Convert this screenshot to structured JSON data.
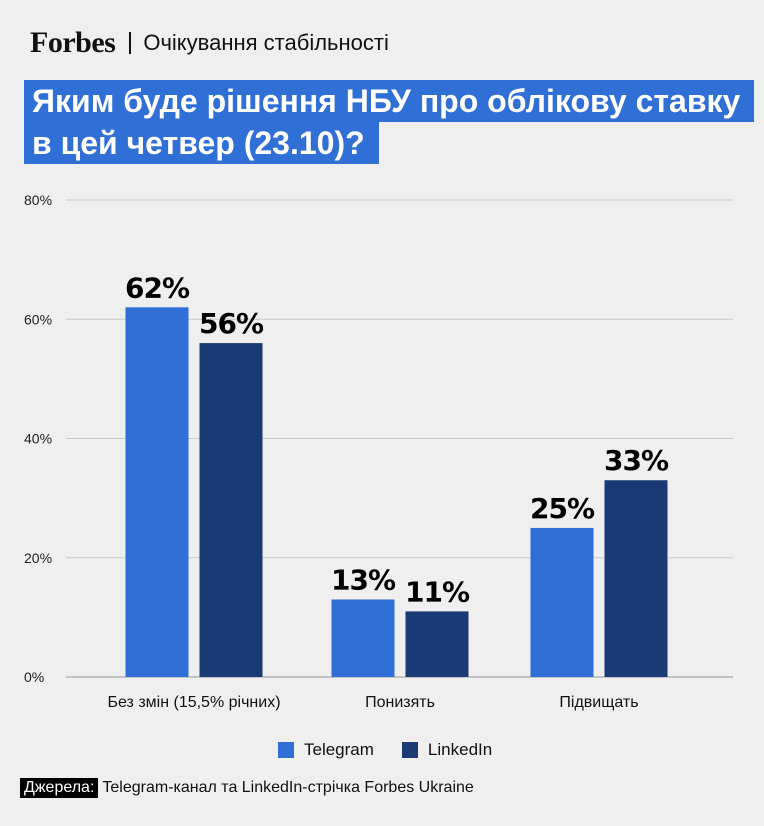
{
  "header": {
    "logo": "Forbes",
    "series_title": "Очікування стабільності"
  },
  "title": {
    "line1": "Яким буде рішення НБУ про облікову ставку",
    "line2": "в цей четвер (23.10)?"
  },
  "colors": {
    "telegram": "#2f6fd6",
    "linkedin": "#1a3a75",
    "title_bg": "#2f6fd6"
  },
  "chart_data": {
    "type": "bar",
    "categories": [
      "Без змін (15,5% річних)",
      "Понизять",
      "Підвищать"
    ],
    "series": [
      {
        "name": "Telegram",
        "values": [
          62,
          13,
          25
        ]
      },
      {
        "name": "LinkedIn",
        "values": [
          56,
          11,
          33
        ]
      }
    ],
    "ylim": [
      0,
      80
    ],
    "yticks": [
      "0%",
      "20%",
      "40%",
      "60%",
      "80%"
    ],
    "value_suffix": "%",
    "grid": true,
    "legend_position": "bottom"
  },
  "legend": {
    "telegram": "Telegram",
    "linkedin": "LinkedIn"
  },
  "source": {
    "tag": "Джерела:",
    "text": "Telegram-канал та LinkedIn-стрічка Forbes Ukraine"
  }
}
